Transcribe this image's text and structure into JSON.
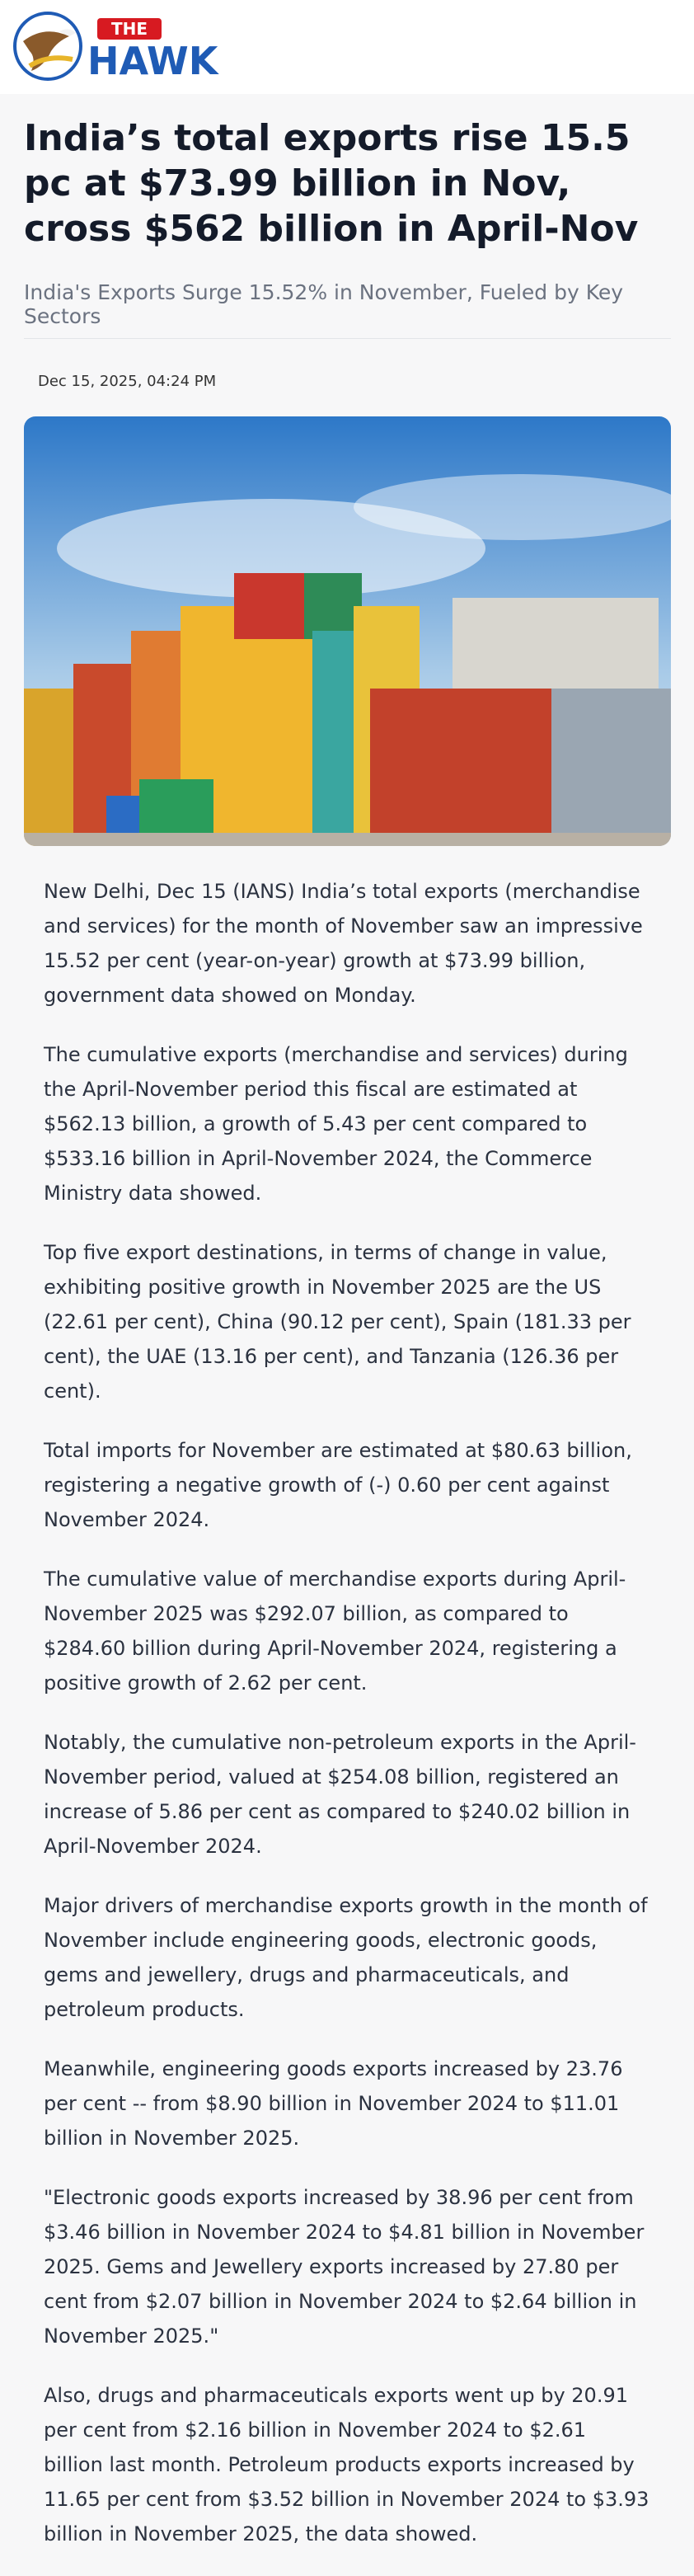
{
  "header": {
    "logo_small": "THE",
    "logo_main": "HAWK"
  },
  "article": {
    "title": "India’s total exports rise 15.5 pc at $73.99 billion in Nov, cross $562 billion in April-Nov",
    "subtitle": "India's Exports Surge 15.52% in November, Fueled by Key Sectors",
    "date": "Dec 15, 2025, 04:24 PM",
    "paragraphs": [
      "New Delhi, Dec 15 (IANS) India’s total exports (merchandise and services) for the month of November saw an impressive 15.52 per cent (year-on-year) growth at $73.99 billion, government data showed on Monday.",
      "The cumulative exports (merchandise and services) during the April-November period this fiscal are estimated at $562.13 billion, a growth of 5.43 per cent compared to $533.16 billion in April-November 2024, the Commerce Ministry data showed.",
      "Top five export destinations, in terms of change in value, exhibiting positive growth in November 2025 are the US (22.61 per cent), China (90.12 per cent), Spain (181.33 per cent), the UAE (13.16 per cent), and Tanzania (126.36 per cent).",
      "Total imports for November are estimated at $80.63 billion, registering a negative growth of (-) 0.60 per cent against November 2024.",
      "The cumulative value of merchandise exports during April-November 2025 was $292.07 billion, as compared to $284.60 billion during April-November 2024, registering a positive growth of 2.62 per cent.",
      "Notably, the cumulative non-petroleum exports in the April-November period, valued at $254.08 billion, registered an increase of 5.86 per cent as compared to $240.02 billion in April-November 2024.",
      "Major drivers of merchandise exports growth in the month of November include engineering goods, electronic goods, gems and jewellery, drugs and pharmaceuticals, and petroleum products.",
      "Meanwhile, engineering goods exports increased by 23.76 per cent -- from $8.90 billion in November 2024 to $11.01 billion in November 2025.",
      "\"Electronic goods exports increased by 38.96 per cent from $3.46 billion in November 2024 to $4.81 billion in November 2025. Gems and Jewellery exports increased by 27.80 per cent from $2.07 billion in November 2024 to $2.64 billion in November 2025.\"",
      "Also, drugs and pharmaceuticals exports went up by 20.91 per cent from $2.16 billion in November 2024 to $2.61 billion last month. Petroleum products exports increased by 11.65 per cent from $3.52 billion in November 2024 to $3.93 billion in November 2025, the data showed."
    ]
  }
}
